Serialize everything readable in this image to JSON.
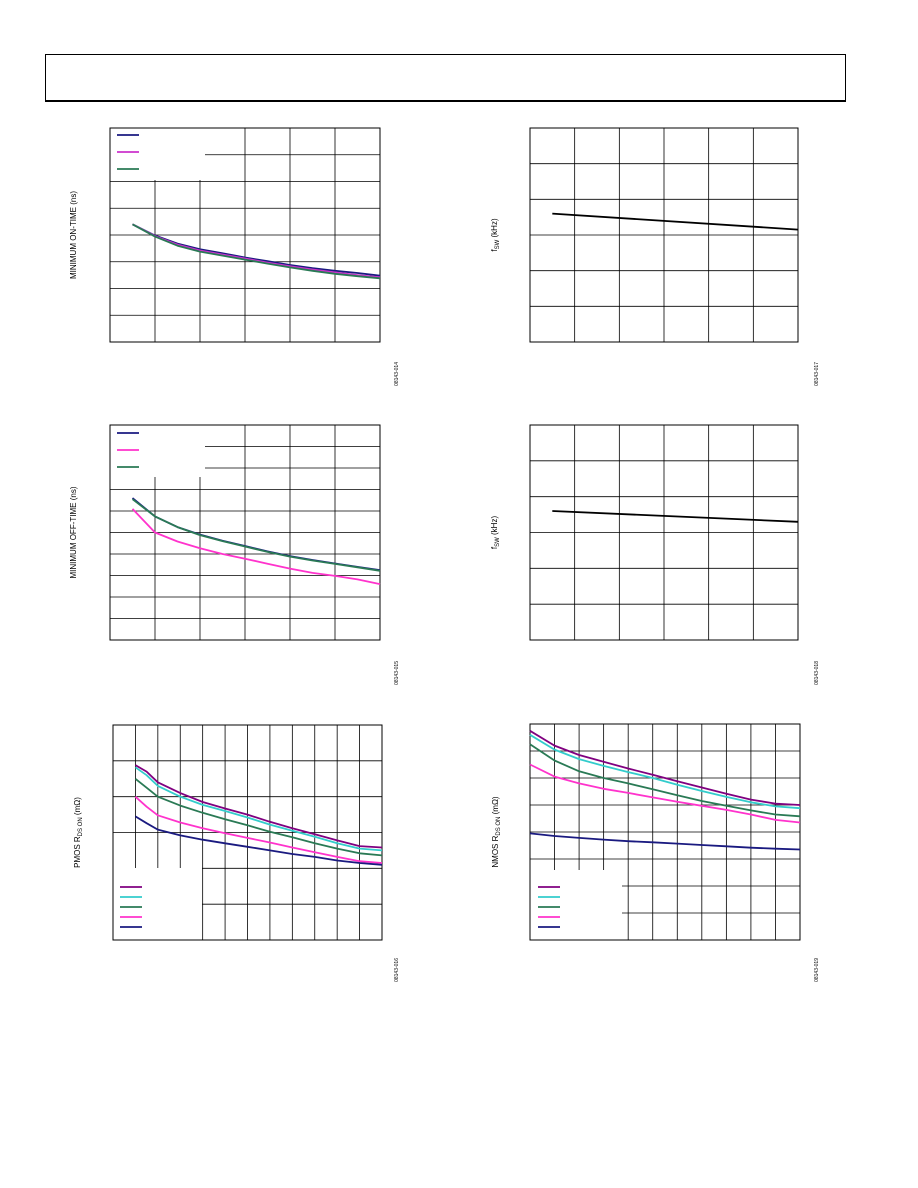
{
  "chart_data": [
    {
      "id": "c1",
      "type": "line",
      "ylabel": "MINIMUM ON-TIME (ns)",
      "fig_id": "08143-014",
      "x_divisions": 6,
      "y_divisions": 8,
      "series": [
        {
          "color": "#1a1a80",
          "x": [
            0.5,
            1.0,
            1.5,
            2.0,
            2.5,
            3.0,
            3.5,
            4.0,
            4.5,
            5.0,
            5.5,
            6.0
          ],
          "y": [
            4.4,
            3.98,
            3.68,
            3.47,
            3.32,
            3.16,
            3.02,
            2.88,
            2.76,
            2.66,
            2.58,
            2.48
          ]
        },
        {
          "color": "#cc33cc",
          "x": [
            0.5,
            1.0,
            1.5,
            2.0,
            2.5,
            3.0,
            3.5,
            4.0,
            4.5,
            5.0,
            5.5,
            6.0
          ],
          "y": [
            4.4,
            3.96,
            3.64,
            3.42,
            3.27,
            3.12,
            2.97,
            2.83,
            2.71,
            2.6,
            2.5,
            2.42
          ]
        },
        {
          "color": "#2a7a55",
          "x": [
            0.5,
            1.0,
            1.5,
            2.0,
            2.5,
            3.0,
            3.5,
            4.0,
            4.5,
            5.0,
            5.5,
            6.0
          ],
          "y": [
            4.4,
            3.94,
            3.6,
            3.38,
            3.23,
            3.08,
            2.93,
            2.79,
            2.66,
            2.55,
            2.46,
            2.38
          ]
        }
      ]
    },
    {
      "id": "c2",
      "type": "line",
      "ylabel": "MINIMUM OFF-TIME (ns)",
      "fig_id": "08143-015",
      "x_divisions": 6,
      "y_divisions": 10,
      "series": [
        {
          "color": "#1a1a80",
          "x": [
            0.5,
            1.0,
            1.5,
            2.0,
            2.5,
            3.0,
            3.5,
            4.0,
            4.5,
            5.0,
            5.5,
            6.0
          ],
          "y": [
            6.6,
            5.75,
            5.25,
            4.9,
            4.62,
            4.37,
            4.12,
            3.9,
            3.72,
            3.56,
            3.4,
            3.25
          ]
        },
        {
          "color": "#ff33cc",
          "x": [
            0.5,
            1.0,
            1.5,
            2.0,
            2.5,
            3.0,
            3.5,
            4.0,
            4.5,
            5.0,
            5.5,
            6.0
          ],
          "y": [
            6.1,
            5.0,
            4.58,
            4.27,
            4.0,
            3.78,
            3.55,
            3.32,
            3.12,
            2.98,
            2.82,
            2.6
          ]
        },
        {
          "color": "#2a7a55",
          "x": [
            0.5,
            1.0,
            1.5,
            2.0,
            2.5,
            3.0,
            3.5,
            4.0,
            4.5,
            5.0,
            5.5,
            6.0
          ],
          "y": [
            6.55,
            5.75,
            5.25,
            4.88,
            4.6,
            4.35,
            4.1,
            3.88,
            3.7,
            3.54,
            3.38,
            3.22
          ]
        }
      ]
    },
    {
      "id": "c3",
      "type": "line",
      "ylabel": "PMOS R",
      "ylabel_sub": "DS ON",
      "ylabel_unit": " (mΩ)",
      "fig_id": "08143-016",
      "x_divisions": 12,
      "y_divisions": 6,
      "series": [
        {
          "color": "#800080",
          "x": [
            1.0,
            1.5,
            2.0,
            3.0,
            4.0,
            5.0,
            6.0,
            7.0,
            8.0,
            9.0,
            10.0,
            11.0,
            12.0
          ],
          "y": [
            4.88,
            4.7,
            4.4,
            4.1,
            3.85,
            3.67,
            3.5,
            3.3,
            3.12,
            2.95,
            2.78,
            2.62,
            2.58
          ]
        },
        {
          "color": "#33cccc",
          "x": [
            1.0,
            1.5,
            2.0,
            3.0,
            4.0,
            5.0,
            6.0,
            7.0,
            8.0,
            9.0,
            10.0,
            11.0,
            12.0
          ],
          "y": [
            4.82,
            4.6,
            4.3,
            4.0,
            3.77,
            3.6,
            3.42,
            3.22,
            3.05,
            2.88,
            2.7,
            2.55,
            2.5
          ]
        },
        {
          "color": "#2a7a55",
          "x": [
            1.0,
            1.5,
            2.0,
            3.0,
            4.0,
            5.0,
            6.0,
            7.0,
            8.0,
            9.0,
            10.0,
            11.0,
            12.0
          ],
          "y": [
            4.5,
            4.25,
            4.0,
            3.75,
            3.55,
            3.37,
            3.2,
            3.02,
            2.87,
            2.7,
            2.55,
            2.42,
            2.36
          ]
        },
        {
          "color": "#ff33cc",
          "x": [
            1.0,
            1.5,
            2.0,
            3.0,
            4.0,
            5.0,
            6.0,
            7.0,
            8.0,
            9.0,
            10.0,
            11.0,
            12.0
          ],
          "y": [
            4.0,
            3.72,
            3.48,
            3.28,
            3.12,
            2.98,
            2.85,
            2.72,
            2.58,
            2.45,
            2.32,
            2.2,
            2.15
          ]
        },
        {
          "color": "#1a1a80",
          "x": [
            1.0,
            1.5,
            2.0,
            3.0,
            4.0,
            5.0,
            6.0,
            7.0,
            8.0,
            9.0,
            10.0,
            11.0,
            12.0
          ],
          "y": [
            3.45,
            3.26,
            3.08,
            2.92,
            2.8,
            2.7,
            2.6,
            2.5,
            2.4,
            2.32,
            2.22,
            2.15,
            2.1
          ]
        }
      ]
    },
    {
      "id": "c4",
      "type": "line",
      "ylabel": "f",
      "ylabel_sub": "SW",
      "ylabel_unit": " (kHz)",
      "fig_id": "08143-017",
      "x_divisions": 6,
      "y_divisions": 6,
      "series": [
        {
          "color": "#000000",
          "x": [
            0.5,
            6.0
          ],
          "y": [
            3.6,
            3.15
          ]
        }
      ]
    },
    {
      "id": "c5",
      "type": "line",
      "ylabel": "f",
      "ylabel_sub": "SW",
      "ylabel_unit": " (kHz)",
      "fig_id": "08143-018",
      "x_divisions": 6,
      "y_divisions": 6,
      "series": [
        {
          "color": "#000000",
          "x": [
            0.5,
            6.0
          ],
          "y": [
            3.6,
            3.3
          ]
        }
      ]
    },
    {
      "id": "c6",
      "type": "line",
      "ylabel": "NMOS R",
      "ylabel_sub": "DS ON",
      "ylabel_unit": " (mΩ)",
      "fig_id": "08143-019",
      "x_divisions": 11,
      "y_divisions": 8,
      "series": [
        {
          "color": "#800080",
          "x": [
            0.0,
            1.0,
            2.0,
            3.0,
            4.0,
            5.0,
            6.0,
            7.0,
            8.0,
            9.0,
            10.0,
            11.0
          ],
          "y": [
            7.75,
            7.2,
            6.85,
            6.6,
            6.35,
            6.12,
            5.88,
            5.65,
            5.42,
            5.2,
            5.05,
            5.0
          ]
        },
        {
          "color": "#33cccc",
          "x": [
            0.0,
            1.0,
            2.0,
            3.0,
            4.0,
            5.0,
            6.0,
            7.0,
            8.0,
            9.0,
            10.0,
            11.0
          ],
          "y": [
            7.6,
            7.05,
            6.7,
            6.45,
            6.22,
            6.0,
            5.75,
            5.52,
            5.3,
            5.1,
            4.95,
            4.88
          ]
        },
        {
          "color": "#2a7a55",
          "x": [
            0.0,
            1.0,
            2.0,
            3.0,
            4.0,
            5.0,
            6.0,
            7.0,
            8.0,
            9.0,
            10.0,
            11.0
          ],
          "y": [
            7.25,
            6.65,
            6.25,
            6.0,
            5.8,
            5.58,
            5.36,
            5.15,
            4.97,
            4.8,
            4.65,
            4.58
          ]
        },
        {
          "color": "#ff33cc",
          "x": [
            0.0,
            1.0,
            2.0,
            3.0,
            4.0,
            5.0,
            6.0,
            7.0,
            8.0,
            9.0,
            10.0,
            11.0
          ],
          "y": [
            6.5,
            6.05,
            5.8,
            5.6,
            5.45,
            5.28,
            5.12,
            4.97,
            4.82,
            4.65,
            4.45,
            4.35
          ]
        },
        {
          "color": "#1a1a80",
          "x": [
            0.0,
            1.0,
            2.0,
            3.0,
            4.0,
            5.0,
            6.0,
            7.0,
            8.0,
            9.0,
            10.0,
            11.0
          ],
          "y": [
            3.95,
            3.85,
            3.78,
            3.72,
            3.66,
            3.62,
            3.57,
            3.52,
            3.47,
            3.42,
            3.38,
            3.35
          ]
        }
      ]
    }
  ]
}
